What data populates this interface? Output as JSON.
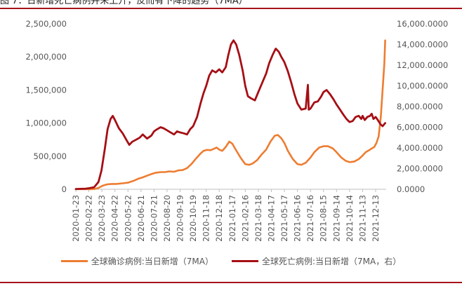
{
  "figure": {
    "title": "图  7：日新增死亡病例并未上升，反而有下降的趋势（7MA）"
  },
  "colors": {
    "confirmed": "#ed7d31",
    "deaths": "#a50f15",
    "rule": "#a7141b"
  },
  "chart_data": {
    "type": "line",
    "title": "图  7：日新增死亡病例并未上升，反而有下降的趋势（7MA）",
    "categories": [
      "2020-01-23",
      "2020-02-22",
      "2020-03-23",
      "2020-04-22",
      "2020-05-22",
      "2020-06-21",
      "2020-07-21",
      "2020-08-20",
      "2020-09-19",
      "2020-10-19",
      "2020-11-18",
      "2020-12-18",
      "2021-01-17",
      "2021-02-16",
      "2021-03-18",
      "2021-04-17",
      "2021-05-17",
      "2021-06-16",
      "2021-07-16",
      "2021-08-15",
      "2021-09-14",
      "2021-10-14",
      "2021-11-13",
      "2021-12-13"
    ],
    "y_left": {
      "ylim": [
        0,
        2500000
      ],
      "ticks": [
        "0",
        "500,000",
        "1,000,000",
        "1,500,000",
        "2,000,000",
        "2,500,000"
      ]
    },
    "y_right": {
      "ylim": [
        0,
        16000
      ],
      "ticks": [
        "0.0000",
        "2,000.0000",
        "4,000.0000",
        "6,000.0000",
        "8,000.0000",
        "10,000.0000",
        "12,000.0000",
        "14,000.0000",
        "16,000.0000"
      ]
    },
    "series": [
      {
        "name": "全球确诊病例:当日新增（7MA）",
        "axis": "left",
        "color": "#ed7d31",
        "points": [
          [
            "2020-01-23",
            2000
          ],
          [
            "2020-02-10",
            3000
          ],
          [
            "2020-02-22",
            1500
          ],
          [
            "2020-03-05",
            3000
          ],
          [
            "2020-03-15",
            20000
          ],
          [
            "2020-03-25",
            55000
          ],
          [
            "2020-04-05",
            75000
          ],
          [
            "2020-04-15",
            80000
          ],
          [
            "2020-04-25",
            80000
          ],
          [
            "2020-05-10",
            90000
          ],
          [
            "2020-05-22",
            100000
          ],
          [
            "2020-06-05",
            130000
          ],
          [
            "2020-06-15",
            160000
          ],
          [
            "2020-06-25",
            180000
          ],
          [
            "2020-07-05",
            205000
          ],
          [
            "2020-07-15",
            230000
          ],
          [
            "2020-07-25",
            250000
          ],
          [
            "2020-08-05",
            260000
          ],
          [
            "2020-08-15",
            260000
          ],
          [
            "2020-08-25",
            270000
          ],
          [
            "2020-09-05",
            265000
          ],
          [
            "2020-09-15",
            285000
          ],
          [
            "2020-09-25",
            290000
          ],
          [
            "2020-10-05",
            320000
          ],
          [
            "2020-10-15",
            380000
          ],
          [
            "2020-10-25",
            460000
          ],
          [
            "2020-11-05",
            540000
          ],
          [
            "2020-11-12",
            580000
          ],
          [
            "2020-11-20",
            595000
          ],
          [
            "2020-11-28",
            590000
          ],
          [
            "2020-12-05",
            610000
          ],
          [
            "2020-12-12",
            630000
          ],
          [
            "2020-12-18",
            600000
          ],
          [
            "2020-12-25",
            580000
          ],
          [
            "2021-01-02",
            640000
          ],
          [
            "2021-01-10",
            720000
          ],
          [
            "2021-01-17",
            690000
          ],
          [
            "2021-01-25",
            600000
          ],
          [
            "2021-02-05",
            480000
          ],
          [
            "2021-02-16",
            380000
          ],
          [
            "2021-02-25",
            370000
          ],
          [
            "2021-03-05",
            390000
          ],
          [
            "2021-03-15",
            440000
          ],
          [
            "2021-03-25",
            520000
          ],
          [
            "2021-04-05",
            600000
          ],
          [
            "2021-04-15",
            720000
          ],
          [
            "2021-04-25",
            810000
          ],
          [
            "2021-05-02",
            820000
          ],
          [
            "2021-05-10",
            770000
          ],
          [
            "2021-05-17",
            700000
          ],
          [
            "2021-05-25",
            580000
          ],
          [
            "2021-06-05",
            460000
          ],
          [
            "2021-06-16",
            380000
          ],
          [
            "2021-06-25",
            370000
          ],
          [
            "2021-07-05",
            400000
          ],
          [
            "2021-07-16",
            480000
          ],
          [
            "2021-07-25",
            560000
          ],
          [
            "2021-08-05",
            630000
          ],
          [
            "2021-08-15",
            650000
          ],
          [
            "2021-08-25",
            650000
          ],
          [
            "2021-09-05",
            620000
          ],
          [
            "2021-09-14",
            560000
          ],
          [
            "2021-09-25",
            480000
          ],
          [
            "2021-10-05",
            430000
          ],
          [
            "2021-10-14",
            410000
          ],
          [
            "2021-10-25",
            420000
          ],
          [
            "2021-11-05",
            460000
          ],
          [
            "2021-11-13",
            510000
          ],
          [
            "2021-11-20",
            560000
          ],
          [
            "2021-11-28",
            590000
          ],
          [
            "2021-12-05",
            620000
          ],
          [
            "2021-12-10",
            640000
          ],
          [
            "2021-12-15",
            700000
          ],
          [
            "2021-12-20",
            800000
          ],
          [
            "2021-12-25",
            1100000
          ],
          [
            "2021-12-29",
            1500000
          ],
          [
            "2022-01-02",
            1900000
          ],
          [
            "2022-01-04",
            2250000
          ]
        ]
      },
      {
        "name": "全球死亡病例:当日新增（7MA，右）",
        "axis": "right",
        "color": "#a50f15",
        "points": [
          [
            "2020-01-23",
            20
          ],
          [
            "2020-02-15",
            60
          ],
          [
            "2020-02-22",
            100
          ],
          [
            "2020-03-05",
            200
          ],
          [
            "2020-03-15",
            700
          ],
          [
            "2020-03-22",
            1800
          ],
          [
            "2020-03-30",
            4000
          ],
          [
            "2020-04-05",
            5800
          ],
          [
            "2020-04-12",
            6800
          ],
          [
            "2020-04-17",
            7100
          ],
          [
            "2020-04-22",
            6700
          ],
          [
            "2020-05-01",
            5900
          ],
          [
            "2020-05-10",
            5400
          ],
          [
            "2020-05-18",
            4800
          ],
          [
            "2020-05-25",
            4300
          ],
          [
            "2020-06-01",
            4600
          ],
          [
            "2020-06-10",
            4800
          ],
          [
            "2020-06-18",
            5000
          ],
          [
            "2020-06-25",
            5300
          ],
          [
            "2020-07-05",
            4900
          ],
          [
            "2020-07-15",
            5200
          ],
          [
            "2020-07-21",
            5600
          ],
          [
            "2020-07-28",
            5800
          ],
          [
            "2020-08-05",
            6000
          ],
          [
            "2020-08-12",
            5900
          ],
          [
            "2020-08-20",
            5700
          ],
          [
            "2020-08-28",
            5500
          ],
          [
            "2020-09-05",
            5300
          ],
          [
            "2020-09-12",
            5600
          ],
          [
            "2020-09-19",
            5500
          ],
          [
            "2020-09-28",
            5400
          ],
          [
            "2020-10-05",
            5300
          ],
          [
            "2020-10-12",
            5800
          ],
          [
            "2020-10-19",
            6100
          ],
          [
            "2020-10-28",
            7000
          ],
          [
            "2020-11-05",
            8300
          ],
          [
            "2020-11-12",
            9300
          ],
          [
            "2020-11-18",
            10000
          ],
          [
            "2020-11-25",
            11000
          ],
          [
            "2020-12-02",
            11500
          ],
          [
            "2020-12-10",
            11300
          ],
          [
            "2020-12-18",
            11600
          ],
          [
            "2020-12-25",
            11300
          ],
          [
            "2021-01-02",
            11800
          ],
          [
            "2021-01-08",
            13000
          ],
          [
            "2021-01-14",
            14000
          ],
          [
            "2021-01-20",
            14400
          ],
          [
            "2021-01-26",
            14000
          ],
          [
            "2021-02-02",
            13000
          ],
          [
            "2021-02-10",
            11500
          ],
          [
            "2021-02-16",
            10000
          ],
          [
            "2021-02-22",
            9000
          ],
          [
            "2021-03-01",
            8800
          ],
          [
            "2021-03-10",
            8600
          ],
          [
            "2021-03-18",
            9400
          ],
          [
            "2021-03-28",
            10400
          ],
          [
            "2021-04-05",
            11200
          ],
          [
            "2021-04-12",
            12200
          ],
          [
            "2021-04-20",
            13000
          ],
          [
            "2021-04-27",
            13600
          ],
          [
            "2021-05-04",
            13300
          ],
          [
            "2021-05-10",
            12800
          ],
          [
            "2021-05-17",
            12300
          ],
          [
            "2021-05-25",
            11400
          ],
          [
            "2021-06-02",
            10300
          ],
          [
            "2021-06-09",
            9200
          ],
          [
            "2021-06-16",
            8300
          ],
          [
            "2021-06-25",
            7700
          ],
          [
            "2021-07-05",
            7800
          ],
          [
            "2021-07-10",
            10100
          ],
          [
            "2021-07-12",
            7700
          ],
          [
            "2021-07-16",
            7800
          ],
          [
            "2021-07-25",
            8400
          ],
          [
            "2021-08-02",
            8500
          ],
          [
            "2021-08-10",
            9000
          ],
          [
            "2021-08-15",
            9400
          ],
          [
            "2021-08-22",
            9600
          ],
          [
            "2021-08-30",
            9200
          ],
          [
            "2021-09-07",
            8700
          ],
          [
            "2021-09-14",
            8200
          ],
          [
            "2021-09-22",
            7700
          ],
          [
            "2021-09-30",
            7200
          ],
          [
            "2021-10-07",
            6800
          ],
          [
            "2021-10-14",
            6500
          ],
          [
            "2021-10-21",
            6600
          ],
          [
            "2021-10-28",
            7000
          ],
          [
            "2021-11-04",
            7100
          ],
          [
            "2021-11-10",
            6800
          ],
          [
            "2021-11-13",
            7100
          ],
          [
            "2021-11-18",
            6700
          ],
          [
            "2021-11-24",
            7000
          ],
          [
            "2021-11-30",
            7100
          ],
          [
            "2021-12-04",
            7300
          ],
          [
            "2021-12-08",
            6800
          ],
          [
            "2021-12-13",
            7000
          ],
          [
            "2021-12-18",
            6700
          ],
          [
            "2021-12-24",
            6300
          ],
          [
            "2021-12-29",
            6100
          ],
          [
            "2022-01-04",
            6400
          ]
        ]
      }
    ],
    "grid": false,
    "legend_position": "bottom"
  }
}
